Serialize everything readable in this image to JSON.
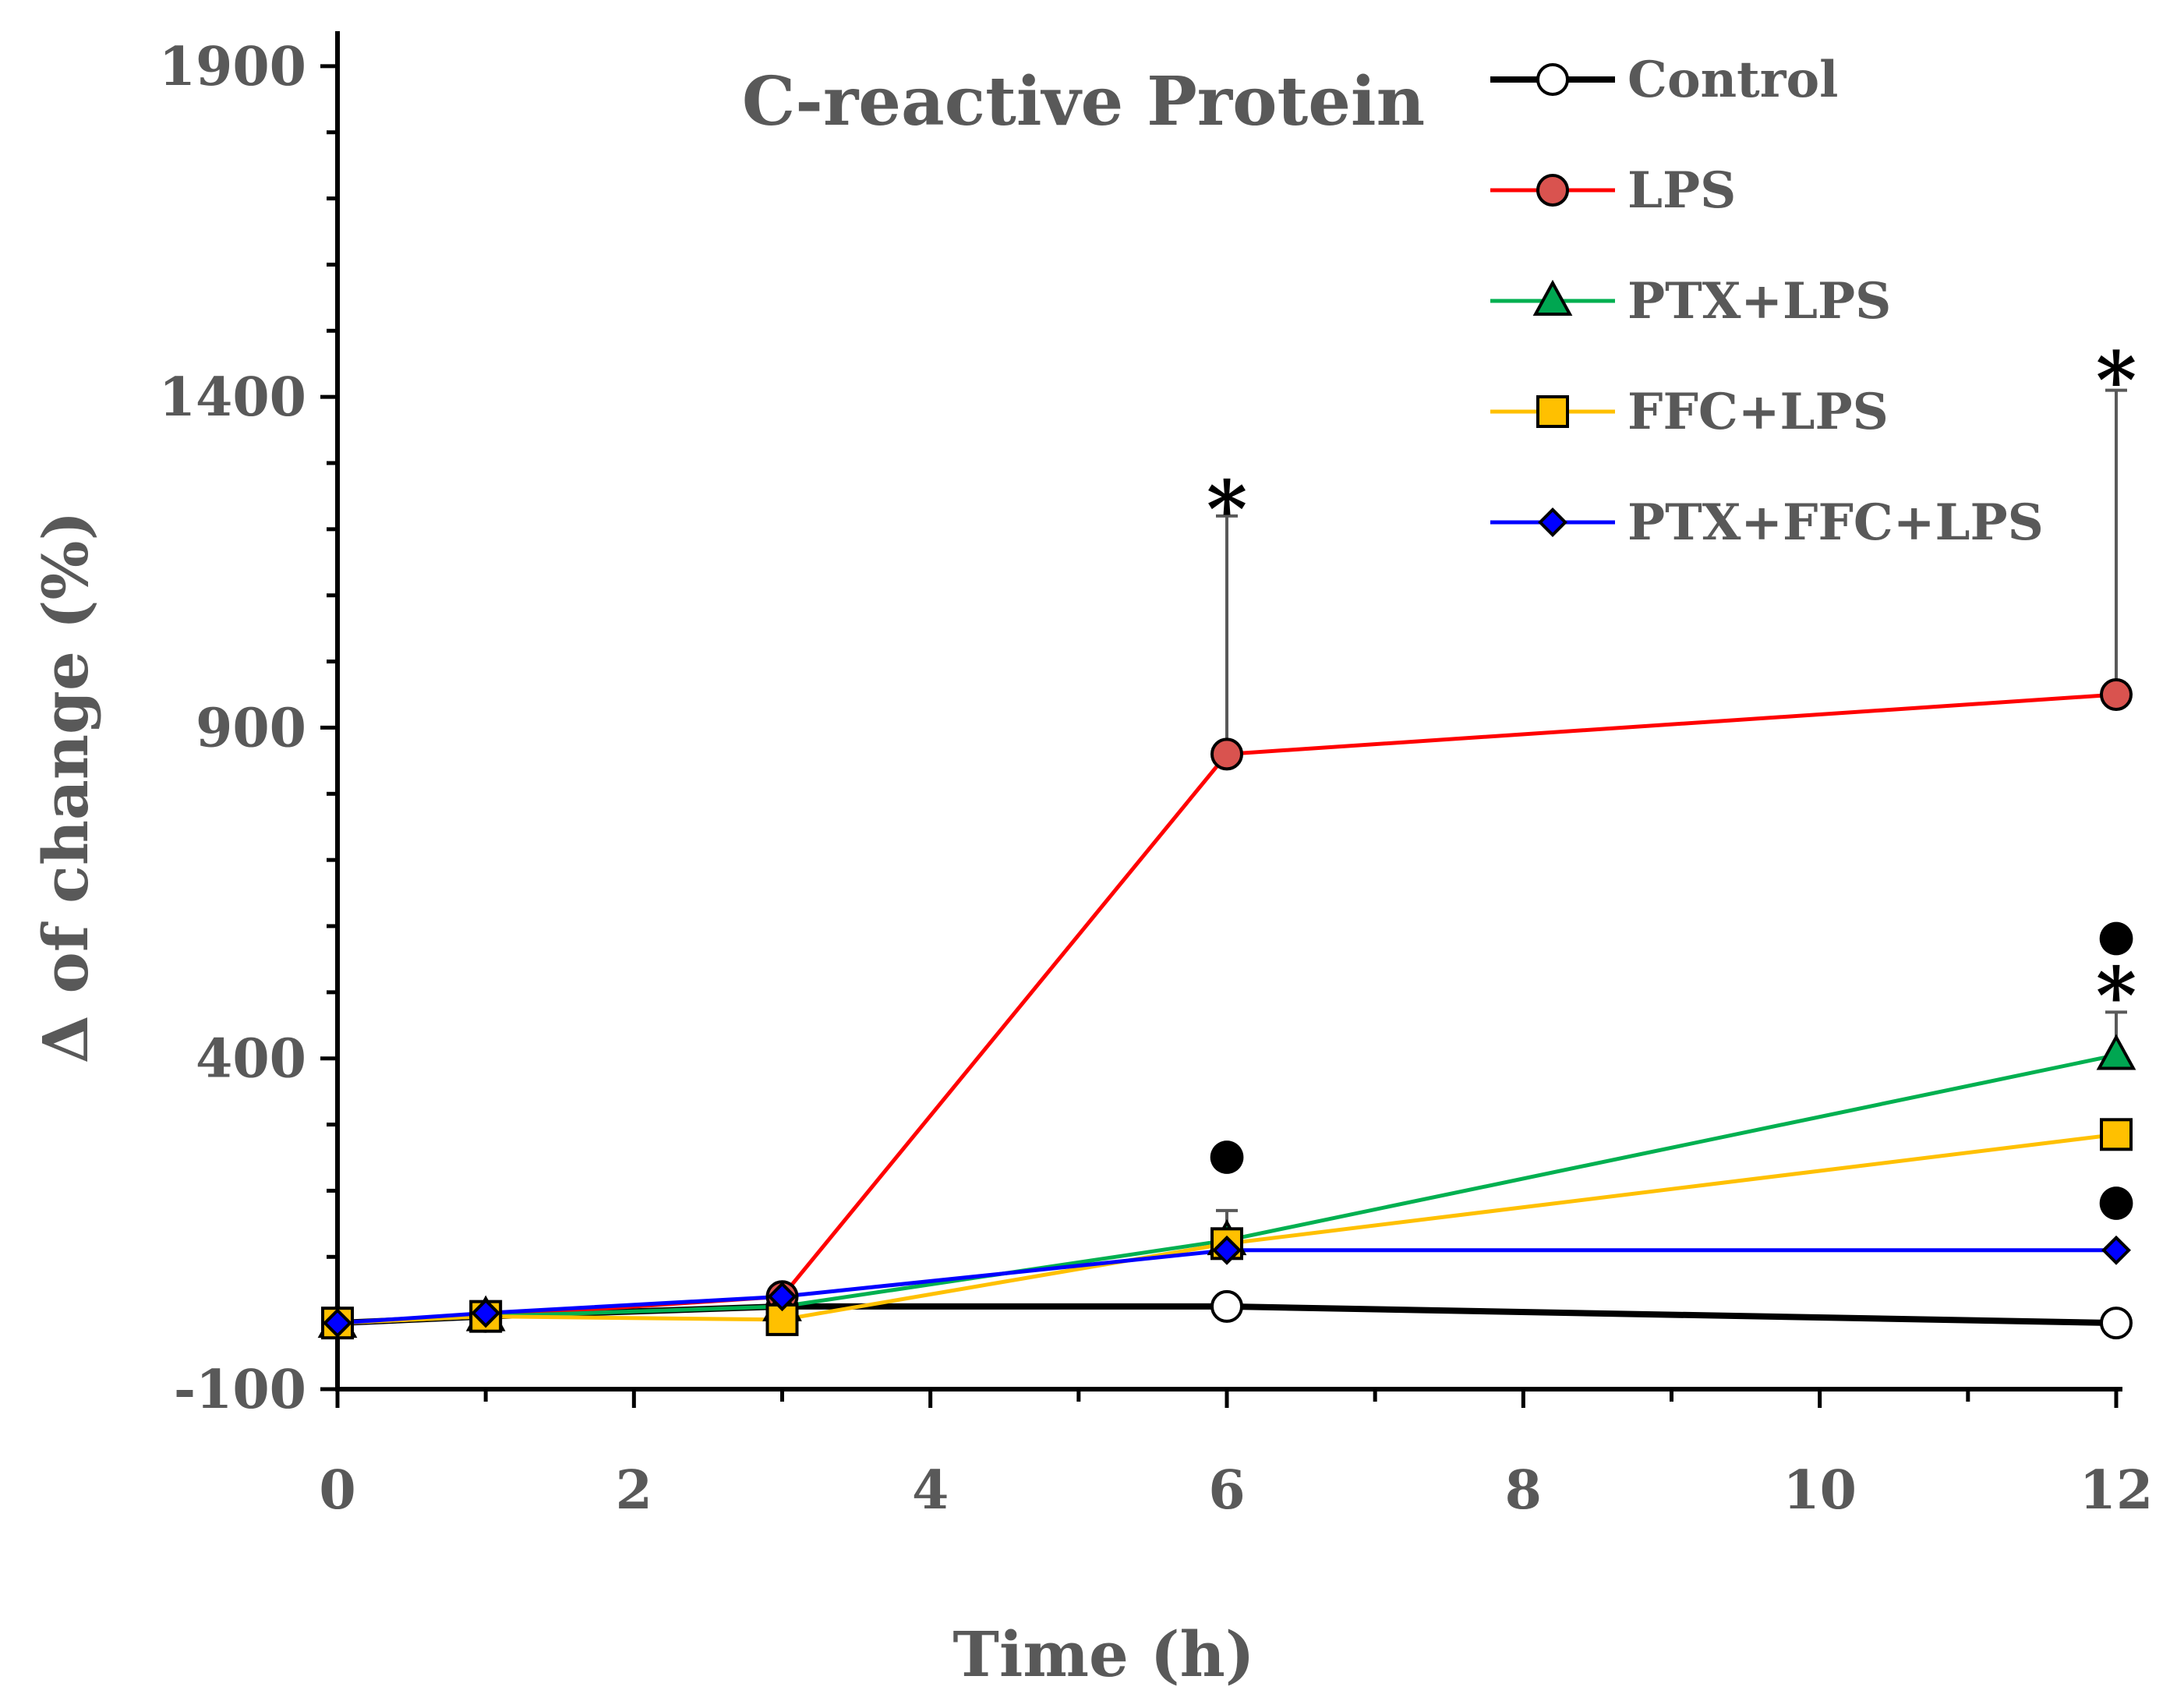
{
  "chart_data": {
    "type": "line",
    "title": "C-reactive Protein",
    "xlabel": "Time (h)",
    "ylabel": "Δ of change (%)",
    "xlim": [
      0,
      12
    ],
    "ylim": [
      -100,
      2000
    ],
    "xticks": [
      0,
      2,
      4,
      6,
      8,
      10,
      12
    ],
    "yticks": [
      -100,
      400,
      900,
      1400,
      1900
    ],
    "x": [
      0,
      1,
      3,
      6,
      12
    ],
    "legend_position": "top-right",
    "series": [
      {
        "name": "Control",
        "color": "#000000",
        "marker": "circle",
        "marker_fill": "#ffffff",
        "values": [
          0,
          10,
          25,
          25,
          0
        ],
        "error_up": [
          null,
          null,
          null,
          null,
          null
        ]
      },
      {
        "name": "LPS",
        "color": "#ff0000",
        "marker": "circle",
        "marker_fill": "#d9534f",
        "values": [
          0,
          10,
          40,
          860,
          950
        ],
        "error_up": [
          null,
          null,
          null,
          1220,
          1410
        ]
      },
      {
        "name": "PTX+LPS",
        "color": "#00b050",
        "marker": "triangle",
        "marker_fill": "#00a651",
        "values": [
          0,
          10,
          25,
          125,
          405
        ],
        "error_up": [
          null,
          null,
          null,
          null,
          470
        ]
      },
      {
        "name": "FFC+LPS",
        "color": "#ffc000",
        "marker": "square",
        "marker_fill": "#ffc000",
        "values": [
          0,
          10,
          5,
          120,
          285
        ],
        "error_up": [
          null,
          null,
          null,
          170,
          null
        ]
      },
      {
        "name": "PTX+FFC+LPS",
        "color": "#0000ff",
        "marker": "diamond",
        "marker_fill": "#0000ff",
        "values": [
          0,
          15,
          40,
          110,
          110
        ],
        "error_up": [
          null,
          null,
          null,
          null,
          null
        ]
      }
    ],
    "annotations": [
      {
        "text": "*",
        "x": 6,
        "y": 1245,
        "kind": "asterisk"
      },
      {
        "text": "*",
        "x": 12,
        "y": 1440,
        "kind": "asterisk"
      },
      {
        "text": "*",
        "x": 12,
        "y": 510,
        "kind": "asterisk"
      },
      {
        "text": "●",
        "x": 12,
        "y": 585,
        "kind": "dot"
      },
      {
        "text": "●",
        "x": 6,
        "y": 255,
        "kind": "dot"
      },
      {
        "text": "●",
        "x": 12,
        "y": 185,
        "kind": "dot"
      }
    ]
  }
}
